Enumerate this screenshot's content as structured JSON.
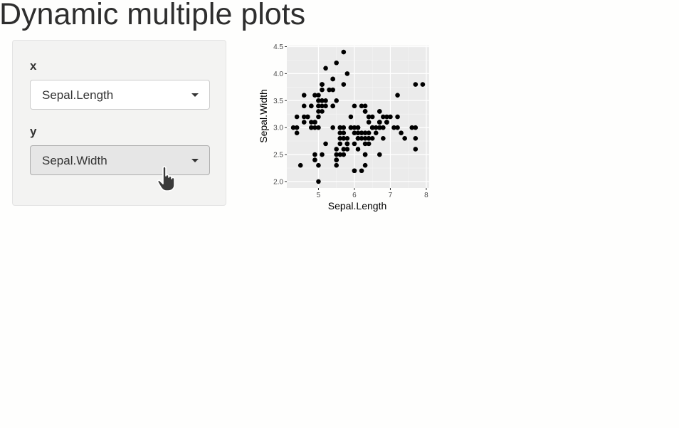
{
  "page": {
    "title": "Dynamic multiple plots"
  },
  "controls": {
    "x": {
      "label": "x",
      "selected": "Sepal.Length"
    },
    "y": {
      "label": "y",
      "selected": "Sepal.Width"
    }
  },
  "chart_data": {
    "type": "scatter",
    "title": "",
    "xlabel": "Sepal.Length",
    "ylabel": "Sepal.Width",
    "xlim": [
      4.3,
      7.9
    ],
    "ylim": [
      2.0,
      4.4
    ],
    "xticks": [
      5,
      6,
      7,
      8
    ],
    "xtick_labels": [
      "5",
      "6",
      "7",
      "8"
    ],
    "yticks": [
      2.0,
      2.5,
      3.0,
      3.5,
      4.0,
      4.5
    ],
    "ytick_labels": [
      "2.0",
      "2.5",
      "3.0",
      "3.5",
      "4.0",
      "4.5"
    ],
    "grid": true,
    "background": "#ebebeb",
    "point_color": "#000000",
    "points": [
      [
        5.1,
        3.5
      ],
      [
        4.9,
        3.0
      ],
      [
        4.7,
        3.2
      ],
      [
        4.6,
        3.1
      ],
      [
        5.0,
        3.6
      ],
      [
        5.4,
        3.9
      ],
      [
        4.6,
        3.4
      ],
      [
        5.0,
        3.4
      ],
      [
        4.4,
        2.9
      ],
      [
        4.9,
        3.1
      ],
      [
        5.4,
        3.7
      ],
      [
        4.8,
        3.4
      ],
      [
        4.8,
        3.0
      ],
      [
        4.3,
        3.0
      ],
      [
        5.8,
        4.0
      ],
      [
        5.7,
        4.4
      ],
      [
        5.4,
        3.9
      ],
      [
        5.1,
        3.5
      ],
      [
        5.7,
        3.8
      ],
      [
        5.1,
        3.8
      ],
      [
        5.4,
        3.4
      ],
      [
        5.1,
        3.7
      ],
      [
        4.6,
        3.6
      ],
      [
        5.1,
        3.3
      ],
      [
        4.8,
        3.4
      ],
      [
        5.0,
        3.0
      ],
      [
        5.0,
        3.4
      ],
      [
        5.2,
        3.5
      ],
      [
        5.2,
        3.4
      ],
      [
        4.7,
        3.2
      ],
      [
        4.8,
        3.1
      ],
      [
        5.4,
        3.4
      ],
      [
        5.2,
        4.1
      ],
      [
        5.5,
        4.2
      ],
      [
        4.9,
        3.1
      ],
      [
        5.0,
        3.2
      ],
      [
        5.5,
        3.5
      ],
      [
        4.9,
        3.6
      ],
      [
        4.4,
        3.0
      ],
      [
        5.1,
        3.4
      ],
      [
        5.0,
        3.5
      ],
      [
        4.5,
        2.3
      ],
      [
        4.4,
        3.2
      ],
      [
        5.0,
        3.5
      ],
      [
        5.1,
        3.8
      ],
      [
        4.8,
        3.0
      ],
      [
        5.1,
        3.8
      ],
      [
        4.6,
        3.2
      ],
      [
        5.3,
        3.7
      ],
      [
        5.0,
        3.3
      ],
      [
        7.0,
        3.2
      ],
      [
        6.4,
        3.2
      ],
      [
        6.9,
        3.1
      ],
      [
        5.5,
        2.3
      ],
      [
        6.5,
        2.8
      ],
      [
        5.7,
        2.8
      ],
      [
        6.3,
        3.3
      ],
      [
        4.9,
        2.4
      ],
      [
        6.6,
        2.9
      ],
      [
        5.2,
        2.7
      ],
      [
        5.0,
        2.0
      ],
      [
        5.9,
        3.0
      ],
      [
        6.0,
        2.2
      ],
      [
        6.1,
        2.9
      ],
      [
        5.6,
        2.9
      ],
      [
        6.7,
        3.1
      ],
      [
        5.6,
        3.0
      ],
      [
        5.8,
        2.7
      ],
      [
        6.2,
        2.2
      ],
      [
        5.6,
        2.5
      ],
      [
        5.9,
        3.2
      ],
      [
        6.1,
        2.8
      ],
      [
        6.3,
        2.5
      ],
      [
        6.1,
        2.8
      ],
      [
        6.4,
        2.9
      ],
      [
        6.6,
        3.0
      ],
      [
        6.8,
        2.8
      ],
      [
        6.7,
        3.0
      ],
      [
        6.0,
        2.9
      ],
      [
        5.7,
        2.6
      ],
      [
        5.5,
        2.4
      ],
      [
        5.5,
        2.4
      ],
      [
        5.8,
        2.7
      ],
      [
        6.0,
        2.7
      ],
      [
        5.4,
        3.0
      ],
      [
        6.0,
        3.4
      ],
      [
        6.7,
        3.1
      ],
      [
        6.3,
        2.3
      ],
      [
        5.6,
        3.0
      ],
      [
        5.5,
        2.5
      ],
      [
        5.5,
        2.6
      ],
      [
        6.1,
        3.0
      ],
      [
        5.8,
        2.6
      ],
      [
        5.0,
        2.3
      ],
      [
        5.6,
        2.7
      ],
      [
        5.7,
        3.0
      ],
      [
        5.7,
        2.9
      ],
      [
        6.2,
        2.9
      ],
      [
        5.1,
        2.5
      ],
      [
        5.7,
        2.8
      ],
      [
        6.3,
        3.3
      ],
      [
        5.8,
        2.7
      ],
      [
        7.1,
        3.0
      ],
      [
        6.3,
        2.9
      ],
      [
        6.5,
        3.0
      ],
      [
        7.6,
        3.0
      ],
      [
        4.9,
        2.5
      ],
      [
        7.3,
        2.9
      ],
      [
        6.7,
        2.5
      ],
      [
        7.2,
        3.6
      ],
      [
        6.5,
        3.2
      ],
      [
        6.4,
        2.7
      ],
      [
        6.8,
        3.0
      ],
      [
        5.7,
        2.5
      ],
      [
        5.8,
        2.8
      ],
      [
        6.4,
        3.2
      ],
      [
        6.5,
        3.0
      ],
      [
        7.7,
        3.8
      ],
      [
        7.7,
        2.6
      ],
      [
        6.0,
        2.2
      ],
      [
        6.9,
        3.2
      ],
      [
        5.6,
        2.8
      ],
      [
        7.7,
        2.8
      ],
      [
        6.3,
        2.7
      ],
      [
        6.7,
        3.3
      ],
      [
        7.2,
        3.2
      ],
      [
        6.2,
        2.8
      ],
      [
        6.1,
        3.0
      ],
      [
        6.4,
        2.8
      ],
      [
        7.2,
        3.0
      ],
      [
        7.4,
        2.8
      ],
      [
        7.9,
        3.8
      ],
      [
        6.4,
        2.8
      ],
      [
        6.3,
        2.8
      ],
      [
        6.1,
        2.6
      ],
      [
        7.7,
        3.0
      ],
      [
        6.3,
        3.4
      ],
      [
        6.4,
        3.1
      ],
      [
        6.0,
        3.0
      ],
      [
        6.9,
        3.1
      ],
      [
        6.7,
        3.1
      ],
      [
        6.9,
        3.1
      ],
      [
        5.8,
        2.7
      ],
      [
        6.8,
        3.2
      ],
      [
        6.7,
        3.3
      ],
      [
        6.7,
        3.0
      ],
      [
        6.3,
        2.5
      ],
      [
        6.5,
        3.0
      ],
      [
        6.2,
        3.4
      ],
      [
        5.9,
        3.0
      ]
    ]
  }
}
